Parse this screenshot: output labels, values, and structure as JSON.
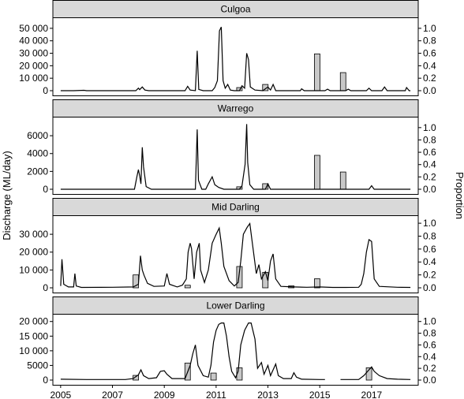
{
  "chart_data": {
    "type": "line",
    "ylabel": "Discharge (ML/day)",
    "y2label": "Proportion",
    "x_ticks": [
      2005,
      2007,
      2009,
      2011,
      2013,
      2015,
      2017
    ],
    "xlim": [
      2004.7,
      2018.8
    ],
    "panels": [
      {
        "title": "Culgoa",
        "ylim": [
          0,
          55000
        ],
        "y_ticks": [
          0,
          10000,
          20000,
          30000,
          40000,
          50000
        ],
        "y_tick_labels": [
          "0",
          "10 000",
          "20 000",
          "30 000",
          "40 000",
          "50 000"
        ],
        "y2lim": [
          0,
          1.1
        ],
        "y2_ticks": [
          0,
          0.2,
          0.4,
          0.6,
          0.8,
          1.0
        ],
        "y2_tick_labels": [
          "0.0",
          "0.2",
          "0.4",
          "0.6",
          "0.8",
          "1.0"
        ],
        "discharge": [
          [
            2005.0,
            0
          ],
          [
            2005.5,
            0
          ],
          [
            2005.9,
            300
          ],
          [
            2006.0,
            0
          ],
          [
            2007.9,
            0
          ],
          [
            2008.0,
            2000
          ],
          [
            2008.05,
            800
          ],
          [
            2008.15,
            3000
          ],
          [
            2008.25,
            500
          ],
          [
            2008.4,
            0
          ],
          [
            2009.8,
            0
          ],
          [
            2009.9,
            3500
          ],
          [
            2010.0,
            500
          ],
          [
            2010.2,
            0
          ],
          [
            2010.27,
            32000
          ],
          [
            2010.33,
            1000
          ],
          [
            2010.5,
            0
          ],
          [
            2010.85,
            0
          ],
          [
            2010.95,
            2500
          ],
          [
            2011.05,
            8000
          ],
          [
            2011.13,
            48000
          ],
          [
            2011.2,
            51000
          ],
          [
            2011.27,
            8000
          ],
          [
            2011.35,
            2000
          ],
          [
            2011.45,
            5000
          ],
          [
            2011.55,
            500
          ],
          [
            2011.7,
            0
          ],
          [
            2011.9,
            0
          ],
          [
            2012.0,
            4000
          ],
          [
            2012.1,
            2000
          ],
          [
            2012.18,
            30000
          ],
          [
            2012.25,
            25000
          ],
          [
            2012.32,
            3000
          ],
          [
            2012.5,
            500
          ],
          [
            2012.8,
            0
          ],
          [
            2013.0,
            3000
          ],
          [
            2013.1,
            500
          ],
          [
            2013.2,
            5000
          ],
          [
            2013.3,
            0
          ],
          [
            2014.25,
            0
          ],
          [
            2014.3,
            1500
          ],
          [
            2014.4,
            0
          ],
          [
            2015.2,
            0
          ],
          [
            2015.3,
            1200
          ],
          [
            2015.4,
            0
          ],
          [
            2016.0,
            0
          ],
          [
            2016.1,
            1200
          ],
          [
            2016.2,
            0
          ],
          [
            2016.8,
            0
          ],
          [
            2016.9,
            2000
          ],
          [
            2017.0,
            0
          ],
          [
            2017.4,
            0
          ],
          [
            2017.5,
            3000
          ],
          [
            2017.6,
            0
          ],
          [
            2018.3,
            0
          ],
          [
            2018.35,
            2500
          ],
          [
            2018.45,
            0
          ],
          [
            2018.5,
            0
          ]
        ],
        "proportion_bars": [
          {
            "year": 2011.9,
            "value": 0.05
          },
          {
            "year": 2012.9,
            "value": 0.1
          },
          {
            "year": 2014.9,
            "value": 0.59
          },
          {
            "year": 2015.9,
            "value": 0.29
          }
        ]
      },
      {
        "title": "Warrego",
        "ylim": [
          0,
          7600
        ],
        "y_ticks": [
          0,
          2000,
          4000,
          6000
        ],
        "y_tick_labels": [
          "0",
          "2000",
          "4000",
          "6000"
        ],
        "y2lim": [
          0,
          1.1
        ],
        "y2_ticks": [
          0,
          0.2,
          0.4,
          0.6,
          0.8,
          1.0
        ],
        "y2_tick_labels": [
          "0.0",
          "0.2",
          "0.4",
          "0.6",
          "0.8",
          "1.0"
        ],
        "discharge": [
          [
            2005.0,
            0
          ],
          [
            2007.85,
            0
          ],
          [
            2007.95,
            1500
          ],
          [
            2008.0,
            2200
          ],
          [
            2008.05,
            1500
          ],
          [
            2008.1,
            600
          ],
          [
            2008.15,
            4700
          ],
          [
            2008.2,
            2500
          ],
          [
            2008.3,
            300
          ],
          [
            2008.5,
            0
          ],
          [
            2010.2,
            0
          ],
          [
            2010.27,
            6700
          ],
          [
            2010.32,
            1000
          ],
          [
            2010.45,
            0
          ],
          [
            2010.6,
            0
          ],
          [
            2010.7,
            600
          ],
          [
            2010.85,
            1400
          ],
          [
            2010.95,
            500
          ],
          [
            2011.1,
            200
          ],
          [
            2011.3,
            0
          ],
          [
            2011.9,
            0
          ],
          [
            2012.0,
            400
          ],
          [
            2012.12,
            2800
          ],
          [
            2012.18,
            7300
          ],
          [
            2012.22,
            3000
          ],
          [
            2012.3,
            500
          ],
          [
            2012.45,
            0
          ],
          [
            2012.9,
            0
          ],
          [
            2013.0,
            600
          ],
          [
            2013.1,
            0
          ],
          [
            2016.9,
            0
          ],
          [
            2017.0,
            400
          ],
          [
            2017.1,
            0
          ],
          [
            2018.5,
            0
          ]
        ],
        "proportion_bars": [
          {
            "year": 2011.9,
            "value": 0.04
          },
          {
            "year": 2012.9,
            "value": 0.09
          },
          {
            "year": 2014.9,
            "value": 0.55
          },
          {
            "year": 2015.9,
            "value": 0.28
          }
        ]
      },
      {
        "title": "Mid Darling",
        "ylim": [
          0,
          38000
        ],
        "y_ticks": [
          0,
          10000,
          20000,
          30000
        ],
        "y_tick_labels": [
          "0",
          "10 000",
          "20 000",
          "30 000"
        ],
        "y2lim": [
          0,
          1.05
        ],
        "y2_ticks": [
          0,
          0.2,
          0.4,
          0.6,
          0.8,
          1.0
        ],
        "y2_tick_labels": [
          "0.0",
          "0.2",
          "0.4",
          "0.6",
          "0.8",
          "1.0"
        ],
        "discharge": [
          [
            2005.0,
            1000
          ],
          [
            2005.05,
            16000
          ],
          [
            2005.12,
            2000
          ],
          [
            2005.3,
            500
          ],
          [
            2005.5,
            500
          ],
          [
            2005.55,
            8000
          ],
          [
            2005.6,
            1000
          ],
          [
            2005.8,
            200
          ],
          [
            2007.0,
            300
          ],
          [
            2007.8,
            500
          ],
          [
            2008.0,
            2000
          ],
          [
            2008.08,
            18000
          ],
          [
            2008.15,
            10000
          ],
          [
            2008.22,
            7000
          ],
          [
            2008.35,
            2500
          ],
          [
            2008.6,
            800
          ],
          [
            2009.0,
            1000
          ],
          [
            2009.1,
            8000
          ],
          [
            2009.2,
            2000
          ],
          [
            2009.5,
            500
          ],
          [
            2009.7,
            1500
          ],
          [
            2009.85,
            5000
          ],
          [
            2009.92,
            20000
          ],
          [
            2010.0,
            25000
          ],
          [
            2010.05,
            22000
          ],
          [
            2010.15,
            5000
          ],
          [
            2010.25,
            20000
          ],
          [
            2010.35,
            25000
          ],
          [
            2010.4,
            10000
          ],
          [
            2010.55,
            3000
          ],
          [
            2010.7,
            10000
          ],
          [
            2010.85,
            25000
          ],
          [
            2011.0,
            30000
          ],
          [
            2011.12,
            33500
          ],
          [
            2011.2,
            25000
          ],
          [
            2011.3,
            12000
          ],
          [
            2011.5,
            4000
          ],
          [
            2011.7,
            1000
          ],
          [
            2011.85,
            3000
          ],
          [
            2011.95,
            15000
          ],
          [
            2012.05,
            30000
          ],
          [
            2012.2,
            34000
          ],
          [
            2012.3,
            36000
          ],
          [
            2012.4,
            25000
          ],
          [
            2012.55,
            8000
          ],
          [
            2012.65,
            13000
          ],
          [
            2012.75,
            5000
          ],
          [
            2012.9,
            9000
          ],
          [
            2013.0,
            4000
          ],
          [
            2013.1,
            15000
          ],
          [
            2013.2,
            19000
          ],
          [
            2013.3,
            5000
          ],
          [
            2013.5,
            800
          ],
          [
            2014.0,
            500
          ],
          [
            2014.5,
            300
          ],
          [
            2015.0,
            500
          ],
          [
            2015.5,
            200
          ],
          [
            2016.0,
            200
          ],
          [
            2016.5,
            300
          ],
          [
            2016.6,
            2000
          ],
          [
            2016.7,
            8000
          ],
          [
            2016.8,
            20000
          ],
          [
            2016.9,
            27000
          ],
          [
            2017.0,
            26000
          ],
          [
            2017.1,
            5000
          ],
          [
            2017.3,
            800
          ],
          [
            2018.0,
            300
          ],
          [
            2018.5,
            200
          ]
        ],
        "proportion_bars": [
          {
            "year": 2007.9,
            "value": 0.2
          },
          {
            "year": 2009.9,
            "value": 0.04
          },
          {
            "year": 2011.9,
            "value": 0.33
          },
          {
            "year": 2012.9,
            "value": 0.24
          },
          {
            "year": 2013.9,
            "value": 0.03
          },
          {
            "year": 2014.9,
            "value": 0.14
          }
        ]
      },
      {
        "title": "Lower Darling",
        "ylim": [
          0,
          21000
        ],
        "y_ticks": [
          0,
          5000,
          10000,
          15000,
          20000
        ],
        "y_tick_labels": [
          "0",
          "5000",
          "10 000",
          "15 000",
          "20 000"
        ],
        "y2lim": [
          0,
          1.05
        ],
        "y2_ticks": [
          0,
          0.2,
          0.4,
          0.6,
          0.8,
          1.0
        ],
        "y2_tick_labels": [
          "0.0",
          "0.2",
          "0.4",
          "0.6",
          "0.8",
          "1.0"
        ],
        "discharge": [
          [
            2005.0,
            300
          ],
          [
            2006.0,
            200
          ],
          [
            2007.5,
            200
          ],
          [
            2007.8,
            500
          ],
          [
            2008.0,
            1800
          ],
          [
            2008.1,
            3500
          ],
          [
            2008.2,
            1500
          ],
          [
            2008.4,
            500
          ],
          [
            2008.7,
            800
          ],
          [
            2008.85,
            3000
          ],
          [
            2009.0,
            3200
          ],
          [
            2009.1,
            2000
          ],
          [
            2009.3,
            500
          ],
          [
            2009.8,
            500
          ],
          [
            2010.0,
            5000
          ],
          [
            2010.1,
            9000
          ],
          [
            2010.2,
            12000
          ],
          [
            2010.3,
            5000
          ],
          [
            2010.5,
            1500
          ],
          [
            2010.7,
            1000
          ],
          [
            2010.8,
            5000
          ],
          [
            2010.9,
            13000
          ],
          [
            2011.0,
            17000
          ],
          [
            2011.1,
            19000
          ],
          [
            2011.2,
            19500
          ],
          [
            2011.3,
            19500
          ],
          [
            2011.4,
            15000
          ],
          [
            2011.5,
            8000
          ],
          [
            2011.6,
            3000
          ],
          [
            2011.75,
            800
          ],
          [
            2011.85,
            3000
          ],
          [
            2011.95,
            12000
          ],
          [
            2012.1,
            17000
          ],
          [
            2012.25,
            19500
          ],
          [
            2012.35,
            19500
          ],
          [
            2012.5,
            14000
          ],
          [
            2012.6,
            4000
          ],
          [
            2012.75,
            6000
          ],
          [
            2012.85,
            2000
          ],
          [
            2013.0,
            5000
          ],
          [
            2013.1,
            1500
          ],
          [
            2013.3,
            5500
          ],
          [
            2013.4,
            1500
          ],
          [
            2013.6,
            500
          ],
          [
            2013.9,
            500
          ],
          [
            2014.0,
            2500
          ],
          [
            2014.1,
            1000
          ],
          [
            2014.3,
            300
          ],
          [
            2015.0,
            200
          ],
          [
            2015.2,
            200
          ],
          [
            2015.8,
            200
          ],
          [
            2016.5,
            200
          ],
          [
            2016.7,
            1500
          ],
          [
            2016.9,
            3500
          ],
          [
            2017.0,
            4500
          ],
          [
            2017.1,
            3000
          ],
          [
            2017.3,
            1500
          ],
          [
            2017.6,
            500
          ],
          [
            2018.0,
            300
          ],
          [
            2018.5,
            200
          ]
        ],
        "discharge_gaps": [
          [
            2015.2,
            2015.8
          ]
        ],
        "proportion_bars": [
          {
            "year": 2007.9,
            "value": 0.08
          },
          {
            "year": 2009.9,
            "value": 0.29
          },
          {
            "year": 2010.9,
            "value": 0.12
          },
          {
            "year": 2011.9,
            "value": 0.21
          },
          {
            "year": 2016.9,
            "value": 0.21
          }
        ]
      }
    ]
  }
}
